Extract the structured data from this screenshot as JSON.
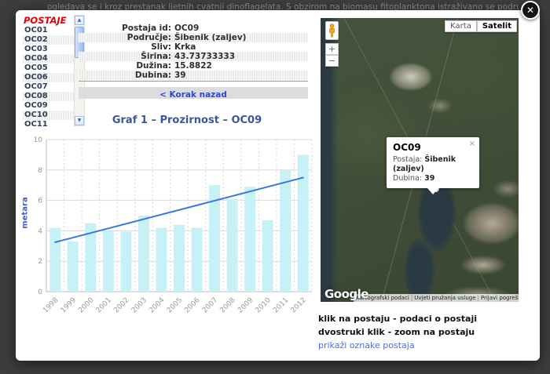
{
  "background": {
    "visible_text": "ogledava se i kroz prestanak ljetnih cvatnji dinoflagelata. S obzirom na biomasu fitoplanktona istraživano se područje može"
  },
  "modal": {
    "close_glyph": "✕"
  },
  "sidebar": {
    "title": "POSTAJE",
    "items": [
      {
        "label": "OC01"
      },
      {
        "label": "OC02"
      },
      {
        "label": "OC03"
      },
      {
        "label": "OC04"
      },
      {
        "label": "OC05"
      },
      {
        "label": "OC06"
      },
      {
        "label": "OC07"
      },
      {
        "label": "OC08"
      },
      {
        "label": "OC09"
      },
      {
        "label": "OC10"
      },
      {
        "label": "OC11"
      }
    ],
    "scroll_up_glyph": "▲",
    "scroll_down_glyph": "▼"
  },
  "station_info": {
    "rows": [
      {
        "label": "Postaja id:",
        "value": "OC09"
      },
      {
        "label": "Područje:",
        "value": "Šibenik (zaljev)"
      },
      {
        "label": "Sliv:",
        "value": "Krka"
      },
      {
        "label": "Širina:",
        "value": "43.73733333"
      },
      {
        "label": "Dužina:",
        "value": "15.8822"
      },
      {
        "label": "Dubina:",
        "value": "39"
      }
    ],
    "back_link": "< Korak nazad"
  },
  "chart_data": {
    "type": "bar",
    "title": "Graf 1 – Prozirnost – OC09",
    "ylabel": "metara",
    "xlabel": "",
    "ylim": [
      0,
      10
    ],
    "yticks": [
      0,
      2,
      4,
      6,
      8,
      10
    ],
    "categories": [
      "1998",
      "1999",
      "2000",
      "2001",
      "2002",
      "2003",
      "2004",
      "2005",
      "2006",
      "2007",
      "2008",
      "2009",
      "2010",
      "2011",
      "2012"
    ],
    "values": [
      4.2,
      3.3,
      4.5,
      4.0,
      3.95,
      5.0,
      4.2,
      4.4,
      4.2,
      7.0,
      6.1,
      6.9,
      4.7,
      8.0,
      9.0
    ],
    "trend_line": {
      "name": "linear trend",
      "y_start": 3.25,
      "y_end": 7.5
    },
    "bar_color": "#c6f1f7",
    "trend_color": "#3b76e0",
    "grid": "horizontal solid, vertical dashed",
    "legend": "none"
  },
  "map": {
    "type_buttons": [
      {
        "label": "Karta",
        "active": false
      },
      {
        "label": "Satelit",
        "active": true
      }
    ],
    "zoom_in": "+",
    "zoom_out": "−",
    "info_window": {
      "title": "OC09",
      "rows": [
        {
          "label": "Postaja:",
          "value": "Šibenik (zaljev)"
        },
        {
          "label": "Dubina:",
          "value": "39"
        }
      ],
      "close_glyph": "×"
    },
    "logo": "Google",
    "attribution": [
      "Kartografski podaci",
      "Uvjeti pružanja usluge",
      "Prijavi pogrešku na kart"
    ]
  },
  "map_help": {
    "line1": "klik na postaju - podaci o postaji",
    "line2": "dvostruki klik - zoom na postaju",
    "link": "prikaži oznake postaja"
  }
}
